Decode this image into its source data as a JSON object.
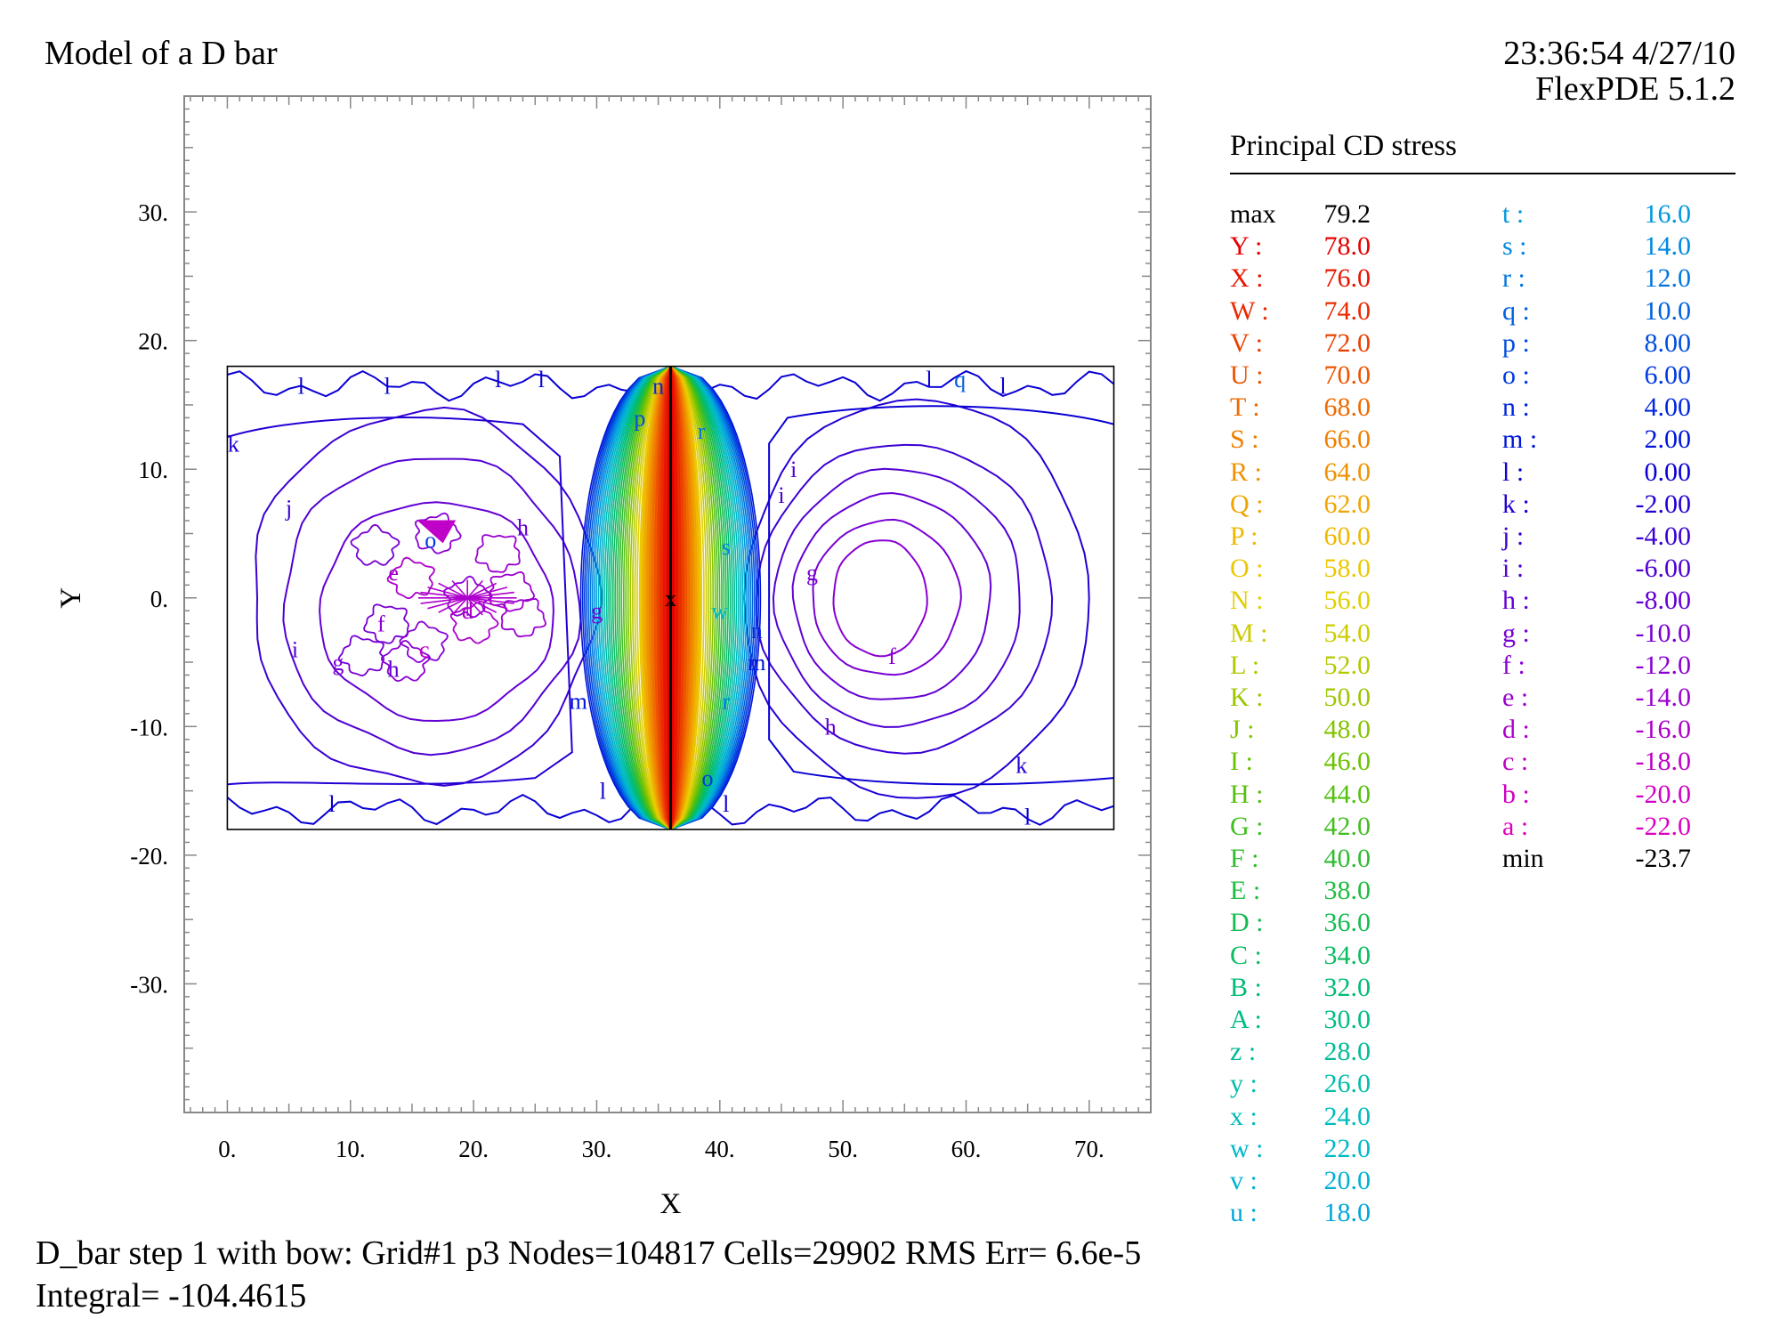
{
  "header": {
    "title": "Model of a D bar",
    "timestamp": "23:36:54 4/27/10",
    "software": "FlexPDE 5.1.2"
  },
  "legend": {
    "title": "Principal CD stress",
    "max_label": "max",
    "max_value": "79.2",
    "min_label": "min",
    "min_value": "-23.7",
    "levels": [
      {
        "label": "Y :",
        "value": "78.0",
        "color": "#e60000"
      },
      {
        "label": "X :",
        "value": "76.0",
        "color": "#e81500"
      },
      {
        "label": "W :",
        "value": "74.0",
        "color": "#ea2a00"
      },
      {
        "label": "V :",
        "value": "72.0",
        "color": "#ec3f00"
      },
      {
        "label": "U :",
        "value": "70.0",
        "color": "#ee5400"
      },
      {
        "label": "T :",
        "value": "68.0",
        "color": "#ef6a00"
      },
      {
        "label": "S :",
        "value": "66.0",
        "color": "#f07e00"
      },
      {
        "label": "R :",
        "value": "64.0",
        "color": "#f09200"
      },
      {
        "label": "Q :",
        "value": "62.0",
        "color": "#f0a500"
      },
      {
        "label": "P :",
        "value": "60.0",
        "color": "#eeb800"
      },
      {
        "label": "O :",
        "value": "58.0",
        "color": "#ebc800"
      },
      {
        "label": "N :",
        "value": "56.0",
        "color": "#e0d000"
      },
      {
        "label": "M :",
        "value": "54.0",
        "color": "#cccc00"
      },
      {
        "label": "L :",
        "value": "52.0",
        "color": "#b4c800"
      },
      {
        "label": "K :",
        "value": "50.0",
        "color": "#9cc600"
      },
      {
        "label": "J :",
        "value": "48.0",
        "color": "#84c400"
      },
      {
        "label": "I :",
        "value": "46.0",
        "color": "#6cc200"
      },
      {
        "label": "H :",
        "value": "44.0",
        "color": "#54c010"
      },
      {
        "label": "G :",
        "value": "42.0",
        "color": "#40be20"
      },
      {
        "label": "F :",
        "value": "40.0",
        "color": "#30bc30"
      },
      {
        "label": "E :",
        "value": "38.0",
        "color": "#20bc40"
      },
      {
        "label": "D :",
        "value": "36.0",
        "color": "#14bc50"
      },
      {
        "label": "C :",
        "value": "34.0",
        "color": "#0abc62"
      },
      {
        "label": "B :",
        "value": "32.0",
        "color": "#00bc74"
      },
      {
        "label": "A :",
        "value": "30.0",
        "color": "#00bc86"
      },
      {
        "label": "z :",
        "value": "28.0",
        "color": "#00bc98"
      },
      {
        "label": "y :",
        "value": "26.0",
        "color": "#00bcaa"
      },
      {
        "label": "x :",
        "value": "24.0",
        "color": "#00bcbc"
      },
      {
        "label": "w :",
        "value": "22.0",
        "color": "#00b8c8"
      },
      {
        "label": "v :",
        "value": "20.0",
        "color": "#00b0d2"
      },
      {
        "label": "u :",
        "value": "18.0",
        "color": "#00a6da"
      },
      {
        "label": "t :",
        "value": "16.0",
        "color": "#0098de"
      },
      {
        "label": "s :",
        "value": "14.0",
        "color": "#0088e0"
      },
      {
        "label": "r :",
        "value": "12.0",
        "color": "#0076e0"
      },
      {
        "label": "q :",
        "value": "10.0",
        "color": "#0062e0"
      },
      {
        "label": "p :",
        "value": "8.00",
        "color": "#004ee0"
      },
      {
        "label": "o :",
        "value": "6.00",
        "color": "#003ae0"
      },
      {
        "label": "n :",
        "value": "4.00",
        "color": "#0028dc"
      },
      {
        "label": "m :",
        "value": "2.00",
        "color": "#0016d8"
      },
      {
        "label": "l :",
        "value": "0.00",
        "color": "#0a00d4"
      },
      {
        "label": "k :",
        "value": "-2.00",
        "color": "#2200d4"
      },
      {
        "label": "j :",
        "value": "-4.00",
        "color": "#3a00d4"
      },
      {
        "label": "i :",
        "value": "-6.00",
        "color": "#5000d4"
      },
      {
        "label": "h :",
        "value": "-8.00",
        "color": "#6400d4"
      },
      {
        "label": "g :",
        "value": "-10.0",
        "color": "#7800d4"
      },
      {
        "label": "f :",
        "value": "-12.0",
        "color": "#8a00d4"
      },
      {
        "label": "e :",
        "value": "-14.0",
        "color": "#9c00d0"
      },
      {
        "label": "d :",
        "value": "-16.0",
        "color": "#ae00cc"
      },
      {
        "label": "c :",
        "value": "-18.0",
        "color": "#c000c8"
      },
      {
        "label": "b :",
        "value": "-20.0",
        "color": "#d000c4"
      },
      {
        "label": "a :",
        "value": "-22.0",
        "color": "#de00c0"
      }
    ]
  },
  "footer": {
    "line1": "D_bar step 1 with bow:  Grid#1  p3  Nodes=104817 Cells=29902 RMS Err= 6.6e-5",
    "line2": "Integral= -104.4615"
  },
  "chart_data": {
    "type": "contour",
    "title": "Principal CD stress",
    "xlabel": "X",
    "ylabel": "Y",
    "xlim": [
      -3.5,
      75
    ],
    "ylim": [
      -40,
      39
    ],
    "xticks": [
      0,
      10,
      20,
      30,
      40,
      50,
      60,
      70
    ],
    "xtick_labels": [
      "0.",
      "10.",
      "20.",
      "30.",
      "40.",
      "50.",
      "60.",
      "70."
    ],
    "yticks": [
      30,
      20,
      10,
      0,
      -10,
      -20,
      -30
    ],
    "ytick_labels": [
      "30.",
      "20.",
      "10.",
      "0.",
      "-10.",
      "-20.",
      "-30."
    ],
    "domain": {
      "x": [
        0,
        72
      ],
      "y": [
        -18,
        18
      ]
    },
    "crack_line_x": 36,
    "max_marker": {
      "label": "x",
      "x": 36,
      "y": 0
    },
    "central_lens": {
      "center_x": 36,
      "center_y": 0,
      "half_height": 18,
      "max_half_width": 7.3
    },
    "left_well_contours": [
      {
        "label": "j",
        "cx": 16,
        "cy": 0,
        "rx": 14,
        "ry": 14.5
      },
      {
        "label": "i",
        "cx": 16.5,
        "cy": -0.5,
        "rx": 12,
        "ry": 11.5
      },
      {
        "label": "h",
        "cx": 17,
        "cy": -1,
        "rx": 9.5,
        "ry": 8.5
      }
    ],
    "right_well_contours": [
      {
        "label": "k",
        "cx": 56,
        "cy": 0,
        "rx": 14,
        "ry": 15.5
      },
      {
        "label": "j",
        "cx": 55,
        "cy": 0,
        "rx": 12,
        "ry": 12
      },
      {
        "label": "i",
        "cx": 54.5,
        "cy": 0,
        "rx": 10,
        "ry": 10
      },
      {
        "label": "h",
        "cx": 54,
        "cy": 0,
        "rx": 8,
        "ry": 8
      },
      {
        "label": "g",
        "cx": 53.5,
        "cy": 0,
        "rx": 6,
        "ry": 6
      },
      {
        "label": "f",
        "cx": 53,
        "cy": 0,
        "rx": 3.8,
        "ry": 4.5
      }
    ],
    "contour_labels": [
      {
        "t": "k",
        "x": 0.5,
        "y": 12
      },
      {
        "t": "l",
        "x": 6,
        "y": 16.5
      },
      {
        "t": "l",
        "x": 13,
        "y": 16.5
      },
      {
        "t": "l",
        "x": 22,
        "y": 17
      },
      {
        "t": "l",
        "x": 25.5,
        "y": 17
      },
      {
        "t": "j",
        "x": 5,
        "y": 7
      },
      {
        "t": "h",
        "x": 24,
        "y": 5.5
      },
      {
        "t": "o",
        "x": 16.5,
        "y": 4.5
      },
      {
        "t": "e",
        "x": 13.5,
        "y": 2
      },
      {
        "t": "f",
        "x": 12.5,
        "y": -2
      },
      {
        "t": "c",
        "x": 16,
        "y": -4
      },
      {
        "t": "d",
        "x": 19.5,
        "y": -1
      },
      {
        "t": "i",
        "x": 5.5,
        "y": -4
      },
      {
        "t": "g",
        "x": 9,
        "y": -5
      },
      {
        "t": "h",
        "x": 13.5,
        "y": -5.5
      },
      {
        "t": "l",
        "x": 8.5,
        "y": -16
      },
      {
        "t": "g",
        "x": 30,
        "y": -1
      },
      {
        "t": "m",
        "x": 28.5,
        "y": -8
      },
      {
        "t": "l",
        "x": 30.5,
        "y": -15
      },
      {
        "t": "p",
        "x": 33.5,
        "y": 14
      },
      {
        "t": "n",
        "x": 35,
        "y": 16.5
      },
      {
        "t": "r",
        "x": 38.5,
        "y": 13
      },
      {
        "t": "s",
        "x": 40.5,
        "y": 4
      },
      {
        "t": "w",
        "x": 40,
        "y": -1
      },
      {
        "t": "n",
        "x": 43,
        "y": -2.5
      },
      {
        "t": "m",
        "x": 43,
        "y": -5
      },
      {
        "t": "r",
        "x": 40.5,
        "y": -8
      },
      {
        "t": "o",
        "x": 39,
        "y": -14
      },
      {
        "t": "l",
        "x": 40.5,
        "y": -16
      },
      {
        "t": "i",
        "x": 46,
        "y": 10
      },
      {
        "t": "i",
        "x": 45,
        "y": 8
      },
      {
        "t": "g",
        "x": 47.5,
        "y": 2
      },
      {
        "t": "f",
        "x": 54,
        "y": -4.5
      },
      {
        "t": "h",
        "x": 49,
        "y": -10
      },
      {
        "t": "k",
        "x": 64.5,
        "y": -13
      },
      {
        "t": "l",
        "x": 57,
        "y": 17
      },
      {
        "t": "q",
        "x": 59.5,
        "y": 17
      },
      {
        "t": "l",
        "x": 63,
        "y": 16.5
      },
      {
        "t": "l",
        "x": 65,
        "y": -17
      }
    ]
  }
}
